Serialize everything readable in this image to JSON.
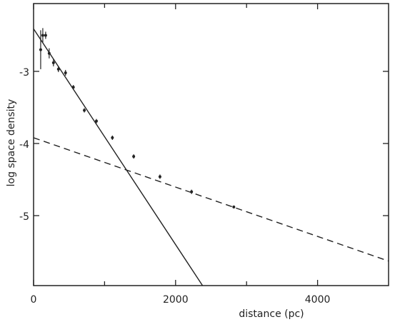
{
  "chart_data": {
    "type": "scatter",
    "xlabel": "distance (pc)",
    "ylabel": "log space density",
    "xlim": [
      0,
      5000
    ],
    "ylim": [
      -5.97,
      -2.06
    ],
    "xticks": [
      0,
      2000,
      4000
    ],
    "xminorticks": [
      1000,
      3000
    ],
    "yticks": [
      -3,
      -4,
      -5
    ],
    "color": "#222222",
    "series": [
      {
        "x": [
          100,
          130,
          170,
          220,
          280,
          350,
          450,
          560,
          715,
          885,
          1110,
          1410,
          1780,
          2225,
          2820
        ],
        "values": [
          -2.7,
          -2.5,
          -2.5,
          -2.75,
          -2.88,
          -2.97,
          -3.02,
          -3.22,
          -3.54,
          -3.69,
          -3.92,
          -4.18,
          -4.46,
          -4.67,
          -4.88
        ],
        "errors": [
          0.27,
          0.1,
          0.05,
          0.07,
          0.05,
          0.04,
          0.04,
          0.03,
          0.03,
          0.03,
          0.03,
          0.03,
          0.03,
          0.03,
          0.02
        ]
      }
    ],
    "lines": [
      {
        "style": "solid",
        "x": [
          0,
          2380
        ],
        "values": [
          -2.41,
          -5.97
        ]
      },
      {
        "style": "dashed",
        "x": [
          0,
          5000
        ],
        "values": [
          -3.92,
          -5.63
        ]
      }
    ]
  }
}
